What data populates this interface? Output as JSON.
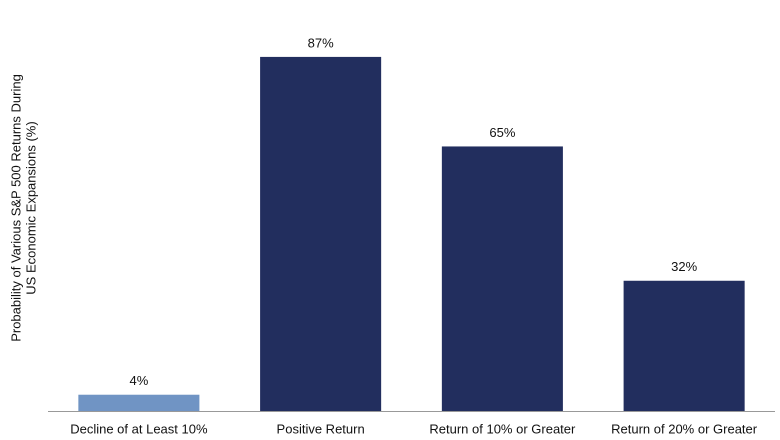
{
  "chart_data": {
    "type": "bar",
    "ylabel": [
      "Probability of Various S&P 500 Returns During",
      "US Economic Expansions (%)"
    ],
    "categories": [
      "Decline of at Least 10%",
      "Positive Return",
      "Return of 10% or Greater",
      "Return of 20% or Greater"
    ],
    "values": [
      4,
      87,
      65,
      32
    ],
    "value_labels": [
      "4%",
      "87%",
      "65%",
      "32%"
    ],
    "colors": [
      "#7094c4",
      "#222e5e",
      "#222e5e",
      "#222e5e"
    ]
  }
}
